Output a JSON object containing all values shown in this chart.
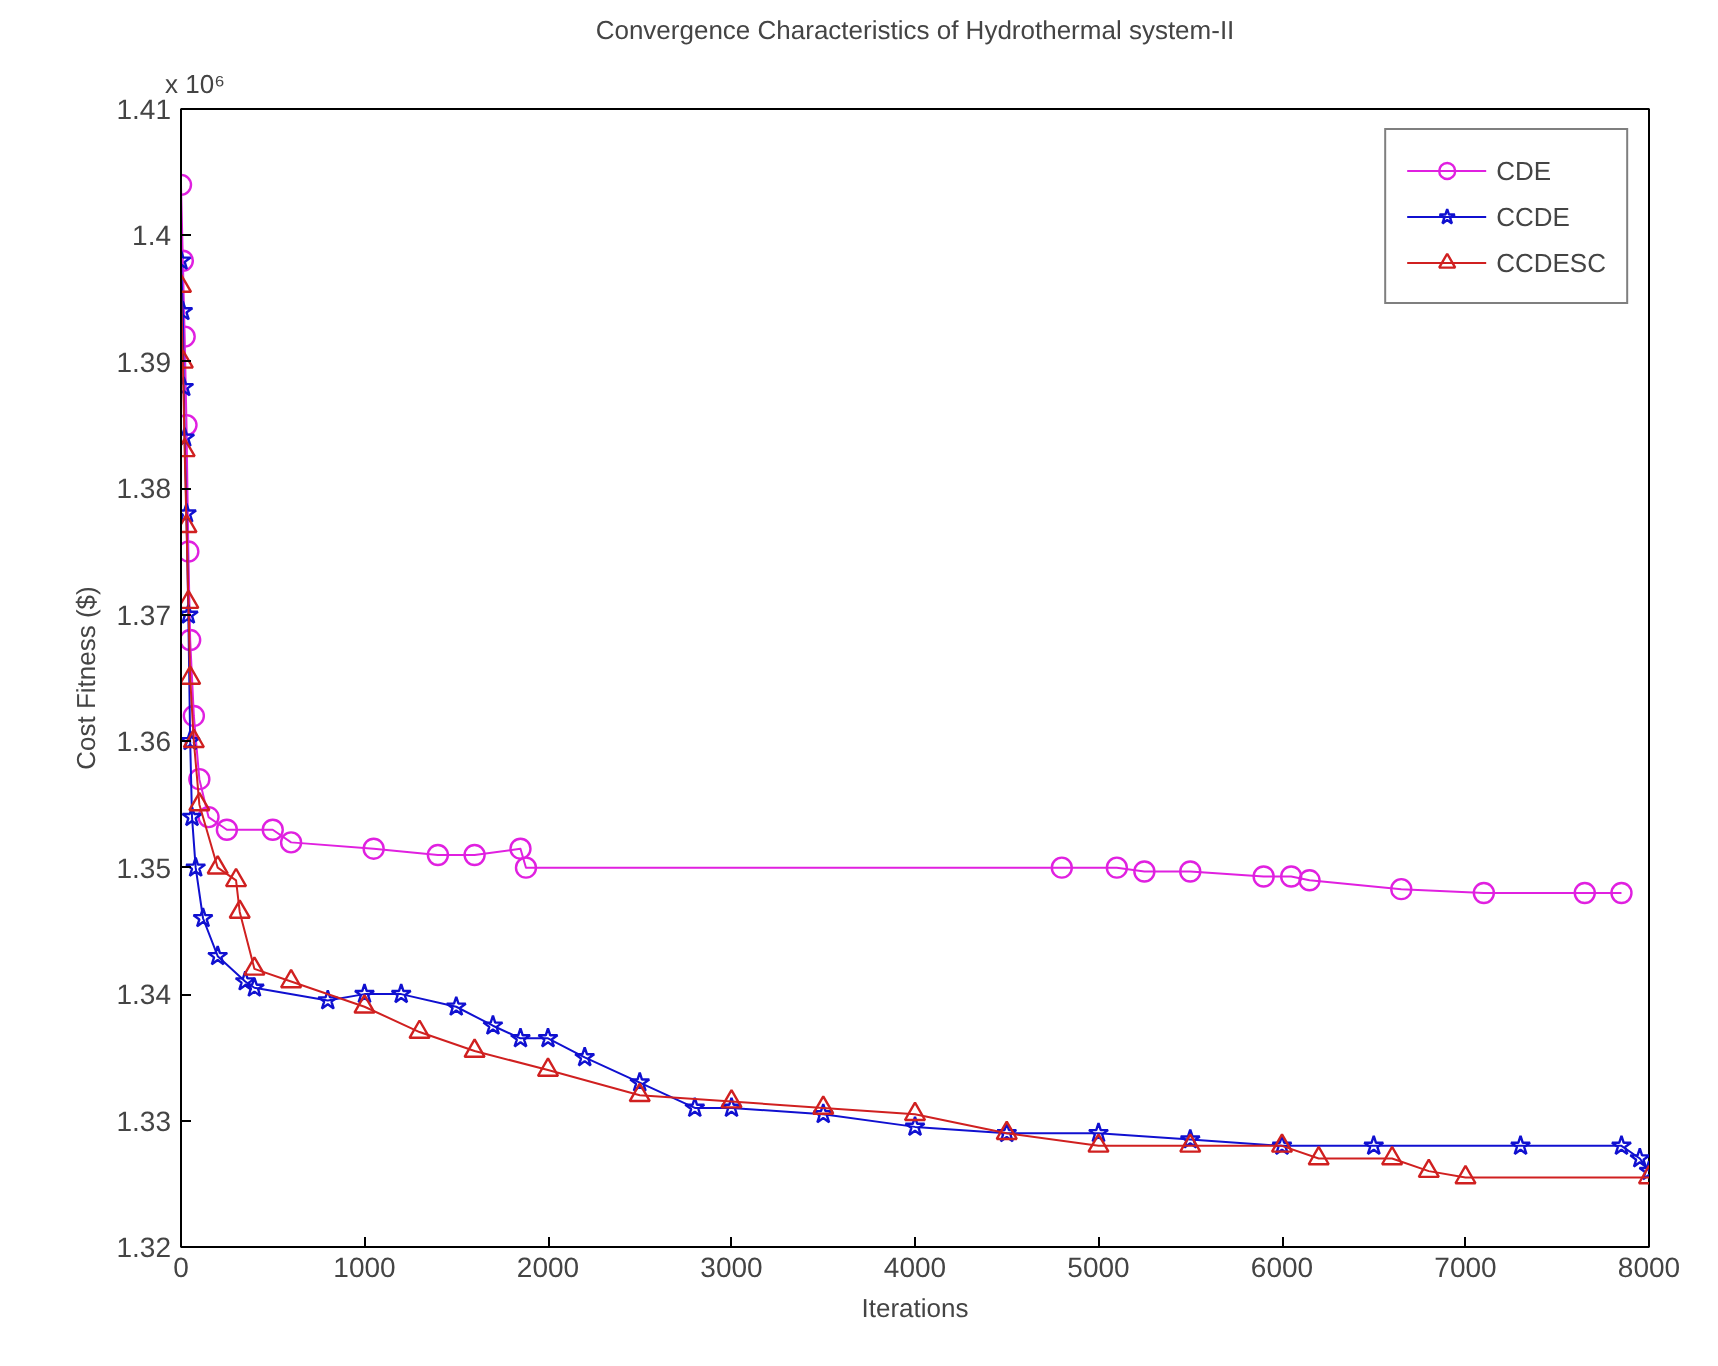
{
  "chart_data": {
    "type": "line",
    "title": "Convergence Characteristics of Hydrothermal system-II",
    "xlabel": "Iterations",
    "ylabel": "Cost Fitness ($)",
    "annotations": [
      "x 10⁶"
    ],
    "xlim": [
      0,
      8000
    ],
    "xticks": [
      0,
      1000,
      2000,
      3000,
      4000,
      5000,
      6000,
      7000,
      8000
    ],
    "ylim": [
      1.32,
      1.41
    ],
    "yticks": [
      1.32,
      1.33,
      1.34,
      1.35,
      1.36,
      1.37,
      1.38,
      1.39,
      1.4,
      1.41
    ],
    "grid": false,
    "legend": "top right",
    "line_style": "solid",
    "series": [
      {
        "name": "CDE",
        "color": "#e020e0",
        "marker": "circle",
        "x": [
          0,
          10,
          20,
          30,
          40,
          50,
          70,
          100,
          150,
          250,
          500,
          600,
          1050,
          1400,
          1600,
          1850,
          1880,
          4800,
          5100,
          5250,
          5500,
          5900,
          6050,
          6150,
          6650,
          7100,
          7650,
          7850
        ],
        "values": [
          1.404,
          1.398,
          1.392,
          1.385,
          1.375,
          1.368,
          1.362,
          1.357,
          1.354,
          1.353,
          1.353,
          1.352,
          1.3515,
          1.351,
          1.351,
          1.3515,
          1.35,
          1.35,
          1.35,
          1.3497,
          1.3497,
          1.3493,
          1.3493,
          1.349,
          1.3483,
          1.348,
          1.348,
          1.348
        ]
      },
      {
        "name": "CCDE",
        "color": "#1010d0",
        "marker": "star",
        "x": [
          0,
          10,
          15,
          20,
          30,
          40,
          50,
          60,
          80,
          120,
          200,
          350,
          400,
          800,
          1000,
          1200,
          1500,
          1700,
          1850,
          2000,
          2200,
          2500,
          2800,
          3000,
          3500,
          4000,
          4500,
          5000,
          5500,
          6000,
          6500,
          7300,
          7850,
          7950,
          8000
        ],
        "values": [
          1.398,
          1.394,
          1.388,
          1.384,
          1.378,
          1.37,
          1.36,
          1.354,
          1.35,
          1.346,
          1.343,
          1.341,
          1.3405,
          1.3395,
          1.34,
          1.34,
          1.339,
          1.3375,
          1.3365,
          1.3365,
          1.335,
          1.333,
          1.331,
          1.331,
          1.3305,
          1.3295,
          1.329,
          1.329,
          1.3285,
          1.328,
          1.328,
          1.328,
          1.328,
          1.327,
          1.326
        ]
      },
      {
        "name": "CCDESC",
        "color": "#d02020",
        "marker": "triangle",
        "x": [
          0,
          10,
          20,
          30,
          40,
          50,
          70,
          100,
          200,
          300,
          320,
          400,
          600,
          1000,
          1300,
          1600,
          2000,
          2500,
          3000,
          3500,
          4000,
          4500,
          5000,
          5500,
          6000,
          6200,
          6600,
          6800,
          7000,
          8000
        ],
        "values": [
          1.396,
          1.39,
          1.383,
          1.377,
          1.371,
          1.365,
          1.36,
          1.355,
          1.35,
          1.349,
          1.3465,
          1.342,
          1.341,
          1.339,
          1.337,
          1.3355,
          1.334,
          1.332,
          1.3315,
          1.331,
          1.3305,
          1.329,
          1.328,
          1.328,
          1.328,
          1.327,
          1.327,
          1.326,
          1.3255,
          1.3255
        ]
      }
    ]
  }
}
